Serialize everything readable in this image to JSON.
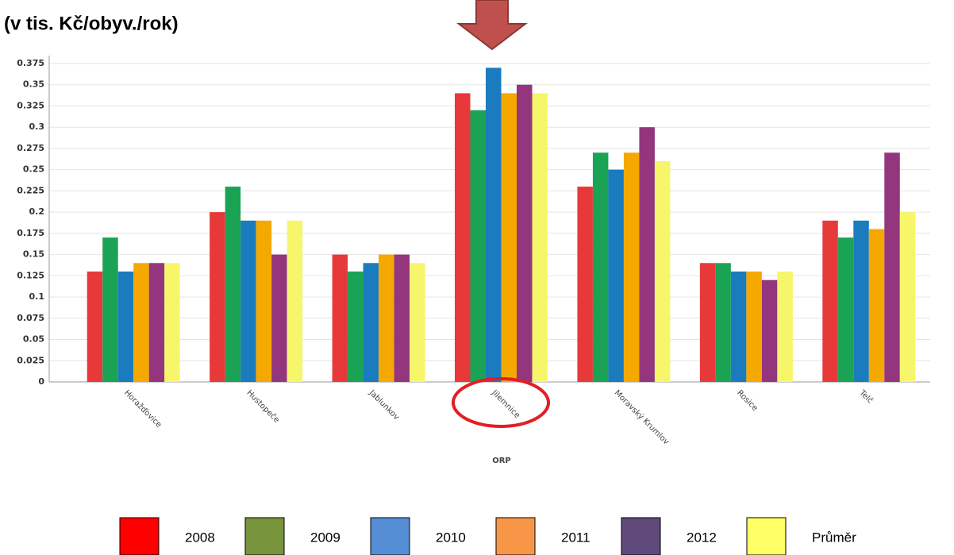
{
  "chart_data": {
    "type": "bar",
    "title": "(v tis. Kč/obyv./rok)",
    "x_label": "ORP",
    "categories": [
      "Horažďovice",
      "Hustopeče",
      "Jablunkov",
      "Jilemnice",
      "Moravský Krumlov",
      "Rosice",
      "Telč"
    ],
    "series": [
      {
        "name": "2008",
        "color": "#e8393a",
        "legend_color": "#ff0000",
        "values": [
          0.13,
          0.2,
          0.15,
          0.34,
          0.23,
          0.14,
          0.19
        ]
      },
      {
        "name": "2009",
        "color": "#1aa355",
        "legend_color": "#77933c",
        "values": [
          0.17,
          0.23,
          0.13,
          0.32,
          0.27,
          0.14,
          0.17
        ]
      },
      {
        "name": "2010",
        "color": "#1a7bbf",
        "legend_color": "#558ed5",
        "values": [
          0.13,
          0.19,
          0.14,
          0.37,
          0.25,
          0.13,
          0.19
        ]
      },
      {
        "name": "2011",
        "color": "#f5a800",
        "legend_color": "#f79646",
        "values": [
          0.14,
          0.19,
          0.15,
          0.34,
          0.27,
          0.13,
          0.18
        ]
      },
      {
        "name": "2012",
        "color": "#93367e",
        "legend_color": "#604a7b",
        "values": [
          0.14,
          0.15,
          0.15,
          0.35,
          0.3,
          0.12,
          0.27
        ]
      },
      {
        "name": "Průměr",
        "color": "#f7f66a",
        "legend_color": "#ffff66",
        "values": [
          0.14,
          0.19,
          0.14,
          0.34,
          0.26,
          0.13,
          0.2
        ]
      }
    ],
    "ylim": [
      0,
      0.375
    ],
    "yticks": [
      0,
      0.025,
      0.05,
      0.075,
      0.1,
      0.125,
      0.15,
      0.175,
      0.2,
      0.225,
      0.25,
      0.275,
      0.3,
      0.325,
      0.35,
      0.375
    ],
    "grid": true
  }
}
